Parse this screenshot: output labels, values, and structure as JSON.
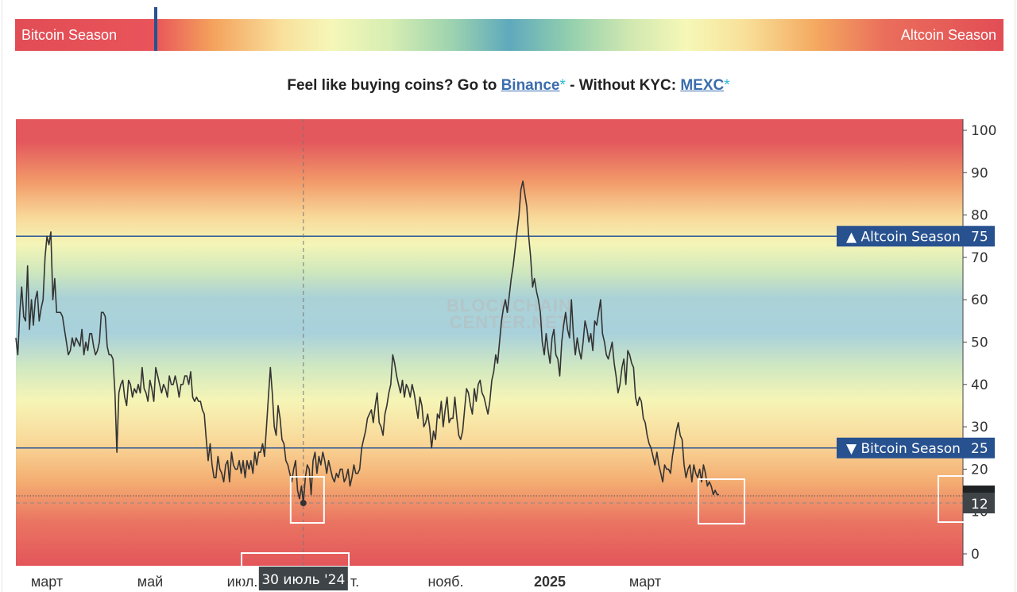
{
  "header": {
    "bitcoin_label": "Bitcoin Season",
    "altcoin_label": "Altcoin Season",
    "indicator_value": 12
  },
  "promo": {
    "lead": "Feel like buying coins? Go to ",
    "link1": "Binance",
    "mid": " - Without KYC: ",
    "link2": "MEXC",
    "star": "*"
  },
  "chart_data": {
    "type": "line",
    "watermark": [
      "BLOCKCHAIN",
      "CENTER.NET"
    ],
    "ylim": [
      0,
      100
    ],
    "y_ticks": [
      0,
      10,
      20,
      30,
      40,
      50,
      60,
      70,
      80,
      90,
      100
    ],
    "x_tick_labels": [
      "март",
      "май",
      "июл.",
      "сент.",
      "нояб.",
      "2025",
      "март"
    ],
    "thresholds": [
      {
        "label": "▲ Altcoin Season",
        "value": 75
      },
      {
        "label": "▼ Bitcoin Season",
        "value": 25
      }
    ],
    "current_value": 12,
    "cursor": {
      "date_label": "30 июль '24",
      "value": 12
    },
    "colors": {
      "line": "#333333",
      "threshold": "#2b5594",
      "tag_blue": "#27518f",
      "tag_dark": "#3e4447",
      "band_red": "#e3575d",
      "band_yellow": "#f6f5b6",
      "band_blue": "#a9d2dd"
    },
    "series": [
      {
        "values": [
          51,
          47,
          57,
          63,
          56,
          55,
          68,
          53,
          60,
          54,
          60,
          62,
          55,
          58,
          60,
          70,
          75,
          73,
          76,
          60,
          65,
          57,
          57,
          57,
          56,
          53,
          50,
          47,
          48,
          51,
          49,
          51,
          50,
          49,
          53,
          47,
          50,
          48,
          52,
          52,
          49,
          47,
          48,
          50,
          57,
          57,
          56,
          49,
          47,
          47,
          46,
          38,
          24,
          38,
          40,
          41,
          37,
          35,
          41,
          40,
          37,
          39,
          38,
          40,
          38,
          44,
          39,
          38,
          36,
          41,
          39,
          36,
          44,
          42,
          40,
          38,
          40,
          39,
          37,
          42,
          40,
          40,
          42,
          40,
          37,
          40,
          40,
          42,
          42,
          40,
          43,
          37,
          36,
          37,
          36,
          36,
          34,
          33,
          27,
          22,
          26,
          21,
          18,
          18,
          23,
          20,
          19,
          17,
          21,
          22,
          17,
          24,
          21,
          20,
          20,
          22,
          19,
          22,
          18,
          22,
          20,
          22,
          19,
          24,
          21,
          24,
          24,
          26,
          23,
          30,
          37,
          44,
          38,
          30,
          28,
          35,
          32,
          27,
          26,
          22,
          21,
          19,
          17,
          20,
          22,
          15,
          13,
          16,
          12,
          18,
          21,
          20,
          14,
          22,
          24,
          19,
          23,
          21,
          24,
          22,
          19,
          22,
          20,
          18,
          17,
          19,
          18,
          20,
          20,
          17,
          18,
          20,
          16,
          18,
          21,
          19,
          19,
          20,
          25,
          27,
          29,
          32,
          33,
          34,
          31,
          35,
          38,
          31,
          30,
          28,
          33,
          35,
          38,
          40,
          47,
          45,
          42,
          40,
          38,
          41,
          37,
          40,
          39,
          37,
          40,
          38,
          35,
          32,
          37,
          35,
          30,
          31,
          33,
          30,
          25,
          29,
          27,
          33,
          32,
          36,
          30,
          34,
          37,
          31,
          32,
          32,
          37,
          32,
          28,
          27,
          29,
          34,
          39,
          38,
          35,
          33,
          39,
          36,
          40,
          41,
          38,
          37,
          35,
          33,
          36,
          41,
          43,
          47,
          45,
          50,
          55,
          58,
          60,
          57,
          61,
          65,
          68,
          72,
          76,
          80,
          86,
          88,
          85,
          82,
          75,
          70,
          63,
          65,
          62,
          60,
          57,
          50,
          47,
          52,
          48,
          45,
          51,
          53,
          47,
          46,
          42,
          50,
          54,
          57,
          53,
          51,
          60,
          52,
          47,
          51,
          48,
          46,
          50,
          55,
          53,
          50,
          52,
          48,
          55,
          54,
          57,
          60,
          52,
          50,
          47,
          46,
          48,
          50,
          45,
          42,
          38,
          40,
          44,
          46,
          40,
          48,
          47,
          45,
          44,
          37,
          35,
          37,
          36,
          32,
          31,
          28,
          26,
          25,
          23,
          21,
          24,
          21,
          19,
          17,
          21,
          20,
          20,
          19,
          23,
          26,
          29,
          31,
          28,
          27,
          21,
          18,
          20,
          21,
          17,
          21,
          19,
          18,
          20,
          17,
          21,
          19,
          16,
          17,
          16,
          14,
          15,
          14,
          14
        ]
      }
    ]
  }
}
